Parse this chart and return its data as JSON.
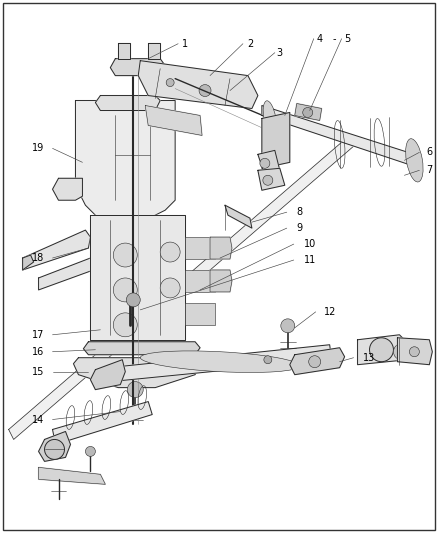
{
  "bg_color": "#ffffff",
  "line_color": "#2a2a2a",
  "label_color": "#000000",
  "fig_width": 4.38,
  "fig_height": 5.33,
  "dpi": 100,
  "lw": 0.7,
  "lw_thin": 0.4,
  "lw_thick": 1.0
}
